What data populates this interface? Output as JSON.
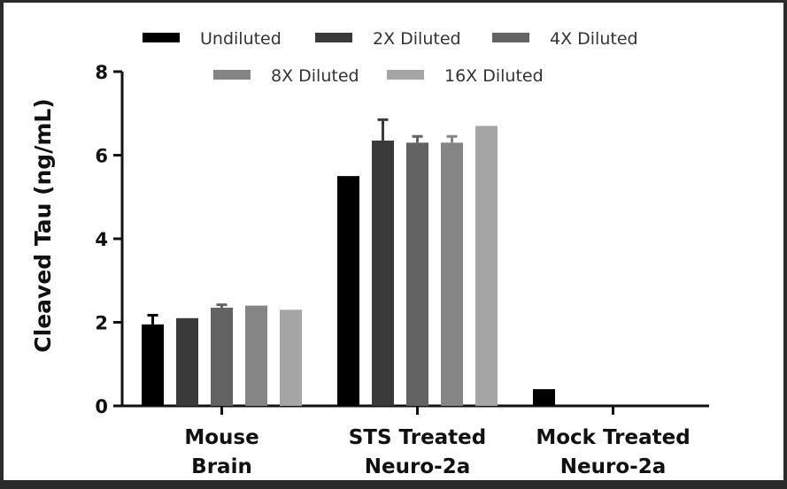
{
  "chart_data": {
    "type": "bar",
    "title": "",
    "xlabel": "",
    "ylabel": "Cleaved Tau (ng/mL)",
    "ylim": [
      0,
      8
    ],
    "yticks": [
      0,
      2,
      4,
      6,
      8
    ],
    "grid": false,
    "legend_position": "top",
    "categories": [
      {
        "lines": [
          "Mouse",
          "Brain"
        ]
      },
      {
        "lines": [
          "STS Treated",
          "Neuro-2a"
        ]
      },
      {
        "lines": [
          "Mock Treated",
          "Neuro-2a"
        ]
      }
    ],
    "series": [
      {
        "name": "Undiluted",
        "color": "#000000",
        "values": [
          1.95,
          5.5,
          0.4
        ],
        "errors": [
          0.22,
          0,
          0
        ]
      },
      {
        "name": "2X Diluted",
        "color": "#3a3a3a",
        "values": [
          2.1,
          6.35,
          null
        ],
        "errors": [
          0,
          0.5,
          0
        ]
      },
      {
        "name": "4X Diluted",
        "color": "#636363",
        "values": [
          2.35,
          6.3,
          null
        ],
        "errors": [
          0.07,
          0.15,
          0
        ]
      },
      {
        "name": "8X Diluted",
        "color": "#858585",
        "values": [
          2.4,
          6.3,
          null
        ],
        "errors": [
          0,
          0.15,
          0
        ]
      },
      {
        "name": "16X Diluted",
        "color": "#a5a5a5",
        "values": [
          2.3,
          6.7,
          null
        ],
        "errors": [
          0,
          0,
          0
        ]
      }
    ]
  }
}
